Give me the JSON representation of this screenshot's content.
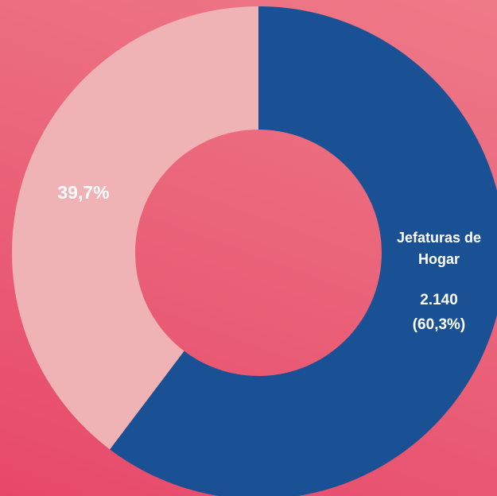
{
  "chart_data": {
    "type": "donut",
    "categories": [
      "Jefaturas de Hogar",
      null
    ],
    "values": [
      60.3,
      39.7
    ],
    "value_labels": [
      "(60,3%)",
      "39,7%"
    ],
    "counts": [
      2140,
      null
    ],
    "count_labels": [
      "2.140",
      null
    ],
    "colors": [
      "#1a5194",
      "#efb2b5"
    ]
  }
}
